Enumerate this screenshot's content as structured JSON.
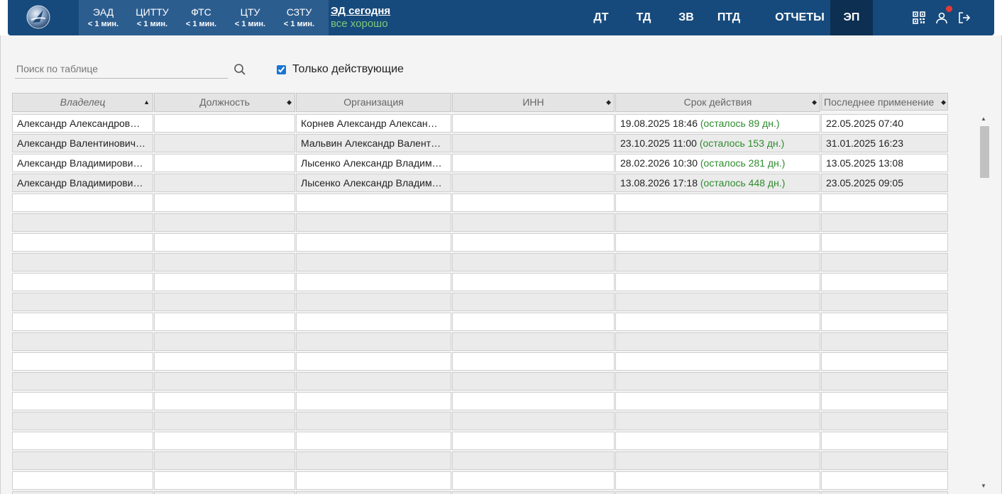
{
  "header": {
    "services": [
      {
        "name": "ЭАД",
        "time": "< 1 мин."
      },
      {
        "name": "ЦИТТУ",
        "time": "< 1 мин."
      },
      {
        "name": "ФТС",
        "time": "< 1 мин."
      },
      {
        "name": "ЦТУ",
        "time": "< 1 мин."
      },
      {
        "name": "СЗТУ",
        "time": "< 1 мин."
      }
    ],
    "ed_title": "ЭД сегодня",
    "ed_status": "все хорошо",
    "nav": [
      "ДТ",
      "ТД",
      "ЗВ",
      "ПТД",
      "ОТЧЕТЫ",
      "ЭП"
    ],
    "active_nav": "ЭП",
    "icons": [
      "qr-code-icon",
      "user-icon",
      "logout-icon"
    ]
  },
  "toolbar": {
    "search_placeholder": "Поиск по таблице",
    "only_active_label": "Только действующие",
    "only_active_checked": true
  },
  "table": {
    "columns": [
      {
        "label": "Владелец",
        "sort": "asc"
      },
      {
        "label": "Должность",
        "sort": "both"
      },
      {
        "label": "Организация",
        "sort": ""
      },
      {
        "label": "ИНН",
        "sort": "both"
      },
      {
        "label": "Срок действия",
        "sort": "both"
      },
      {
        "label": "Последнее применение",
        "sort": "both"
      }
    ],
    "rows": [
      {
        "owner": "Александр Александров…",
        "position": "",
        "org": "Корнев Александр Алексан…",
        "inn": "",
        "valid_until": "19.08.2025 18:46",
        "remaining": "(осталось 89 дн.)",
        "last_used": "22.05.2025 07:40"
      },
      {
        "owner": "Александр Валентинович…",
        "position": "",
        "org": "Мальвин Александр Валент…",
        "inn": "",
        "valid_until": "23.10.2025 11:00",
        "remaining": "(осталось 153 дн.)",
        "last_used": "31.01.2025 16:23"
      },
      {
        "owner": "Александр Владимирови…",
        "position": "",
        "org": "Лысенко Александр Владим…",
        "inn": "",
        "valid_until": "28.02.2026 10:30",
        "remaining": "(осталось 281 дн.)",
        "last_used": "13.05.2025 13:08"
      },
      {
        "owner": "Александр Владимирови…",
        "position": "",
        "org": "Лысенко Александр Владим…",
        "inn": "",
        "valid_until": "13.08.2026 17:18",
        "remaining": "(осталось 448 дн.)",
        "last_used": "23.05.2025 09:05"
      }
    ],
    "empty_rows": 16
  },
  "colors": {
    "header_bg": "#174a7c",
    "services_bg": "#2c5d8f",
    "active_nav_bg": "#0c2f52",
    "status_ok": "#7fc97a",
    "remaining_text": "#2e8b2e",
    "notification": "#e53935"
  }
}
